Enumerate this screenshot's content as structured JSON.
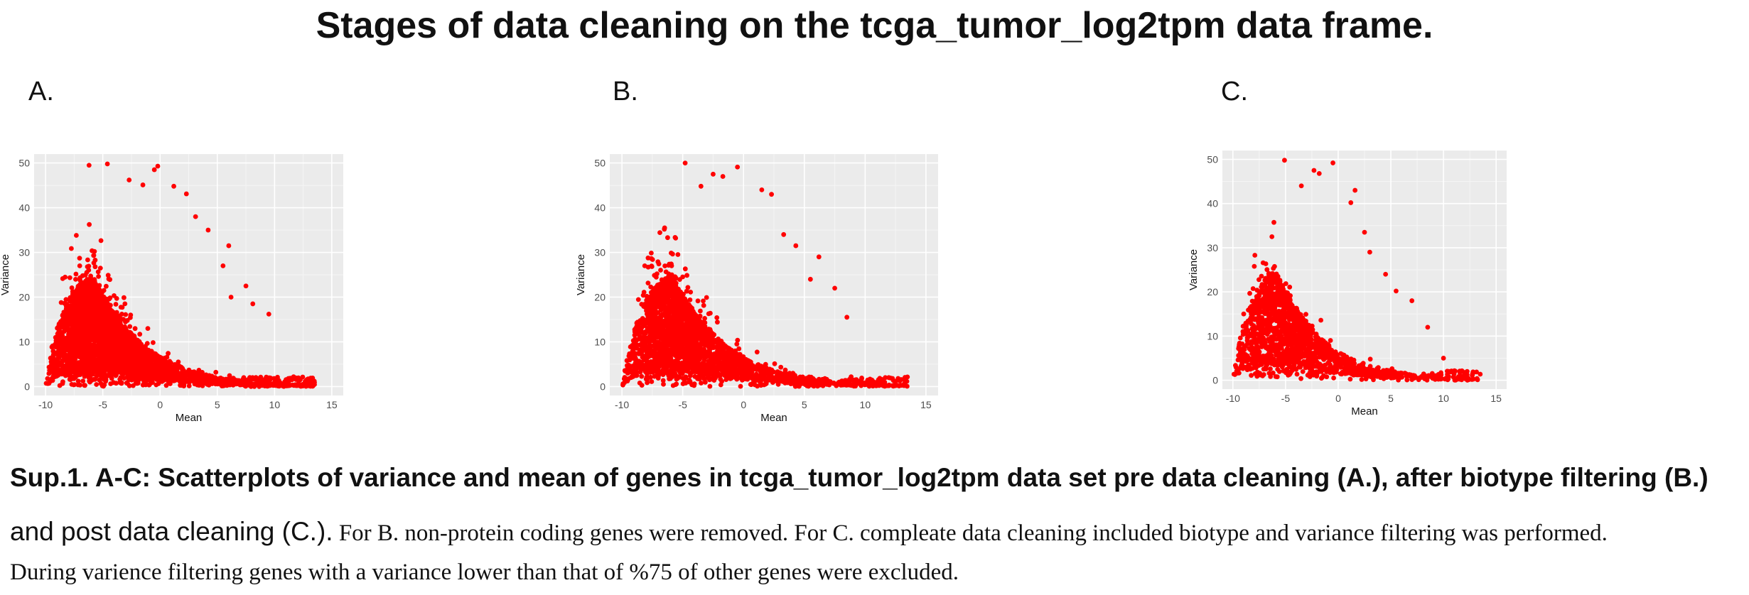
{
  "title": "Stages of data cleaning on the tcga_tumor_log2tpm data frame.",
  "caption": {
    "bold": "Sup.1. A-C: Scatterplots of variance and mean of genes in tcga_tumor_log2tpm data set pre data cleaning (A.), after biotype filtering (B.)",
    "bold2": "and post data cleaning (C.).",
    "text1": " For B. non-protein coding genes were removed. For C. compleate data cleaning included  biotype and variance filtering was performed.",
    "text2": "During varience filtering genes with a variance lower than that of %75 of other genes were excluded."
  },
  "colors": {
    "point": "#ff0000",
    "panel_bg": "#ebebeb",
    "grid_major": "#ffffff",
    "grid_minor": "#f5f5f5"
  },
  "chart_data": [
    {
      "panel_label": "A.",
      "type": "scatter",
      "xlabel": "Mean",
      "ylabel": "Variance",
      "xlim": [
        -11,
        16
      ],
      "ylim": [
        -2,
        52
      ],
      "xticks": [
        -10,
        -5,
        0,
        5,
        10,
        15
      ],
      "yticks": [
        0,
        10,
        20,
        30,
        40,
        50
      ],
      "grid": true,
      "density": 1.0,
      "seed": 11,
      "outliers": [
        [
          -6.2,
          49.5
        ],
        [
          -4.6,
          49.8
        ],
        [
          -0.5,
          48.5
        ],
        [
          -0.2,
          49.3
        ],
        [
          1.2,
          44.8
        ],
        [
          2.3,
          43.1
        ],
        [
          -2.7,
          46.2
        ],
        [
          -1.5,
          45.1
        ],
        [
          3.1,
          38.0
        ],
        [
          4.2,
          35.0
        ],
        [
          6.0,
          31.5
        ],
        [
          7.5,
          22.5
        ],
        [
          9.5,
          16.2
        ],
        [
          8.1,
          18.5
        ],
        [
          6.2,
          20.0
        ],
        [
          5.5,
          27.0
        ]
      ]
    },
    {
      "panel_label": "B.",
      "type": "scatter",
      "xlabel": "Mean",
      "ylabel": "Variance",
      "xlim": [
        -11,
        16
      ],
      "ylim": [
        -2,
        52
      ],
      "xticks": [
        -10,
        -5,
        0,
        5,
        10,
        15
      ],
      "yticks": [
        0,
        10,
        20,
        30,
        40,
        50
      ],
      "grid": true,
      "density": 0.75,
      "seed": 23,
      "outliers": [
        [
          -4.8,
          50.0
        ],
        [
          -0.5,
          49.1
        ],
        [
          -2.5,
          47.5
        ],
        [
          -1.7,
          47.0
        ],
        [
          1.5,
          44.0
        ],
        [
          2.3,
          43.0
        ],
        [
          -3.5,
          44.8
        ],
        [
          3.3,
          34.0
        ],
        [
          4.3,
          31.5
        ],
        [
          6.2,
          29.0
        ],
        [
          7.5,
          22.0
        ],
        [
          8.5,
          15.5
        ],
        [
          5.5,
          24.0
        ]
      ]
    },
    {
      "panel_label": "C.",
      "type": "scatter",
      "xlabel": "Mean",
      "ylabel": "Variance",
      "xlim": [
        -11,
        16
      ],
      "ylim": [
        -2,
        52
      ],
      "xticks": [
        -10,
        -5,
        0,
        5,
        10,
        15
      ],
      "yticks": [
        0,
        10,
        20,
        30,
        40,
        50
      ],
      "grid": true,
      "density": 0.45,
      "seed": 37,
      "outliers": [
        [
          -5.1,
          49.8
        ],
        [
          -0.5,
          49.2
        ],
        [
          -2.3,
          47.5
        ],
        [
          -1.8,
          46.8
        ],
        [
          1.6,
          43.0
        ],
        [
          1.2,
          40.2
        ],
        [
          -3.5,
          44.0
        ],
        [
          2.5,
          33.5
        ],
        [
          3.0,
          29.0
        ],
        [
          4.5,
          24.0
        ],
        [
          5.5,
          20.2
        ],
        [
          7.0,
          18.0
        ],
        [
          8.5,
          12.0
        ],
        [
          10.0,
          5.0
        ],
        [
          10.5,
          2.0
        ]
      ]
    }
  ]
}
